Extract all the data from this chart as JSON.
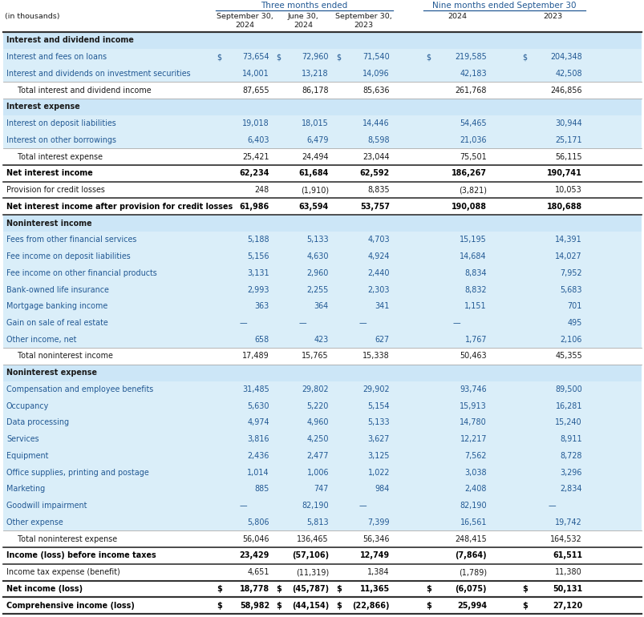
{
  "rows": [
    {
      "label": "Interest and dividend income",
      "type": "section_header",
      "values": [
        "",
        "",
        "",
        "",
        ""
      ],
      "dollar": [
        false,
        false,
        false,
        false,
        false
      ]
    },
    {
      "label": "Interest and fees on loans",
      "type": "data_blue",
      "values": [
        "73,654",
        "72,960",
        "71,540",
        "219,585",
        "204,348"
      ],
      "dollar": [
        true,
        true,
        true,
        true,
        true
      ]
    },
    {
      "label": "Interest and dividends on investment securities",
      "type": "data_blue",
      "values": [
        "14,001",
        "13,218",
        "14,096",
        "42,183",
        "42,508"
      ],
      "dollar": [
        false,
        false,
        false,
        false,
        false
      ]
    },
    {
      "label": "Total interest and dividend income",
      "type": "subtotal",
      "values": [
        "87,655",
        "86,178",
        "85,636",
        "261,768",
        "246,856"
      ],
      "dollar": [
        false,
        false,
        false,
        false,
        false
      ]
    },
    {
      "label": "Interest expense",
      "type": "section_header",
      "values": [
        "",
        "",
        "",
        "",
        ""
      ],
      "dollar": [
        false,
        false,
        false,
        false,
        false
      ]
    },
    {
      "label": "Interest on deposit liabilities",
      "type": "data_blue",
      "values": [
        "19,018",
        "18,015",
        "14,446",
        "54,465",
        "30,944"
      ],
      "dollar": [
        false,
        false,
        false,
        false,
        false
      ]
    },
    {
      "label": "Interest on other borrowings",
      "type": "data_blue",
      "values": [
        "6,403",
        "6,479",
        "8,598",
        "21,036",
        "25,171"
      ],
      "dollar": [
        false,
        false,
        false,
        false,
        false
      ]
    },
    {
      "label": "Total interest expense",
      "type": "subtotal",
      "values": [
        "25,421",
        "24,494",
        "23,044",
        "75,501",
        "56,115"
      ],
      "dollar": [
        false,
        false,
        false,
        false,
        false
      ]
    },
    {
      "label": "Net interest income",
      "type": "bold_total",
      "values": [
        "62,234",
        "61,684",
        "62,592",
        "186,267",
        "190,741"
      ],
      "dollar": [
        false,
        false,
        false,
        false,
        false
      ]
    },
    {
      "label": "Provision for credit losses",
      "type": "data_white",
      "values": [
        "248",
        "(1,910)",
        "8,835",
        "(3,821)",
        "10,053"
      ],
      "dollar": [
        false,
        false,
        false,
        false,
        false
      ]
    },
    {
      "label": "Net interest income after provision for credit losses",
      "type": "bold_total",
      "values": [
        "61,986",
        "63,594",
        "53,757",
        "190,088",
        "180,688"
      ],
      "dollar": [
        false,
        false,
        false,
        false,
        false
      ]
    },
    {
      "label": "Noninterest income",
      "type": "section_header",
      "values": [
        "",
        "",
        "",
        "",
        ""
      ],
      "dollar": [
        false,
        false,
        false,
        false,
        false
      ]
    },
    {
      "label": "Fees from other financial services",
      "type": "data_blue",
      "values": [
        "5,188",
        "5,133",
        "4,703",
        "15,195",
        "14,391"
      ],
      "dollar": [
        false,
        false,
        false,
        false,
        false
      ]
    },
    {
      "label": "Fee income on deposit liabilities",
      "type": "data_blue",
      "values": [
        "5,156",
        "4,630",
        "4,924",
        "14,684",
        "14,027"
      ],
      "dollar": [
        false,
        false,
        false,
        false,
        false
      ]
    },
    {
      "label": "Fee income on other financial products",
      "type": "data_blue",
      "values": [
        "3,131",
        "2,960",
        "2,440",
        "8,834",
        "7,952"
      ],
      "dollar": [
        false,
        false,
        false,
        false,
        false
      ]
    },
    {
      "label": "Bank-owned life insurance",
      "type": "data_blue",
      "values": [
        "2,993",
        "2,255",
        "2,303",
        "8,832",
        "5,683"
      ],
      "dollar": [
        false,
        false,
        false,
        false,
        false
      ]
    },
    {
      "label": "Mortgage banking income",
      "type": "data_blue",
      "values": [
        "363",
        "364",
        "341",
        "1,151",
        "701"
      ],
      "dollar": [
        false,
        false,
        false,
        false,
        false
      ]
    },
    {
      "label": "Gain on sale of real estate",
      "type": "data_blue",
      "values": [
        "—",
        "—",
        "—",
        "—",
        "495"
      ],
      "dollar": [
        false,
        false,
        false,
        false,
        false
      ]
    },
    {
      "label": "Other income, net",
      "type": "data_blue",
      "values": [
        "658",
        "423",
        "627",
        "1,767",
        "2,106"
      ],
      "dollar": [
        false,
        false,
        false,
        false,
        false
      ]
    },
    {
      "label": "Total noninterest income",
      "type": "subtotal",
      "values": [
        "17,489",
        "15,765",
        "15,338",
        "50,463",
        "45,355"
      ],
      "dollar": [
        false,
        false,
        false,
        false,
        false
      ]
    },
    {
      "label": "Noninterest expense",
      "type": "section_header",
      "values": [
        "",
        "",
        "",
        "",
        ""
      ],
      "dollar": [
        false,
        false,
        false,
        false,
        false
      ]
    },
    {
      "label": "Compensation and employee benefits",
      "type": "data_blue",
      "values": [
        "31,485",
        "29,802",
        "29,902",
        "93,746",
        "89,500"
      ],
      "dollar": [
        false,
        false,
        false,
        false,
        false
      ]
    },
    {
      "label": "Occupancy",
      "type": "data_blue",
      "values": [
        "5,630",
        "5,220",
        "5,154",
        "15,913",
        "16,281"
      ],
      "dollar": [
        false,
        false,
        false,
        false,
        false
      ]
    },
    {
      "label": "Data processing",
      "type": "data_blue",
      "values": [
        "4,974",
        "4,960",
        "5,133",
        "14,780",
        "15,240"
      ],
      "dollar": [
        false,
        false,
        false,
        false,
        false
      ]
    },
    {
      "label": "Services",
      "type": "data_blue",
      "values": [
        "3,816",
        "4,250",
        "3,627",
        "12,217",
        "8,911"
      ],
      "dollar": [
        false,
        false,
        false,
        false,
        false
      ]
    },
    {
      "label": "Equipment",
      "type": "data_blue",
      "values": [
        "2,436",
        "2,477",
        "3,125",
        "7,562",
        "8,728"
      ],
      "dollar": [
        false,
        false,
        false,
        false,
        false
      ]
    },
    {
      "label": "Office supplies, printing and postage",
      "type": "data_blue",
      "values": [
        "1,014",
        "1,006",
        "1,022",
        "3,038",
        "3,296"
      ],
      "dollar": [
        false,
        false,
        false,
        false,
        false
      ]
    },
    {
      "label": "Marketing",
      "type": "data_blue",
      "values": [
        "885",
        "747",
        "984",
        "2,408",
        "2,834"
      ],
      "dollar": [
        false,
        false,
        false,
        false,
        false
      ]
    },
    {
      "label": "Goodwill impairment",
      "type": "data_blue",
      "values": [
        "—",
        "82,190",
        "—",
        "82,190",
        "—"
      ],
      "dollar": [
        false,
        false,
        false,
        false,
        false
      ]
    },
    {
      "label": "Other expense",
      "type": "data_blue",
      "values": [
        "5,806",
        "5,813",
        "7,399",
        "16,561",
        "19,742"
      ],
      "dollar": [
        false,
        false,
        false,
        false,
        false
      ]
    },
    {
      "label": "Total noninterest expense",
      "type": "subtotal",
      "values": [
        "56,046",
        "136,465",
        "56,346",
        "248,415",
        "164,532"
      ],
      "dollar": [
        false,
        false,
        false,
        false,
        false
      ]
    },
    {
      "label": "Income (loss) before income taxes",
      "type": "bold_total",
      "values": [
        "23,429",
        "(57,106)",
        "12,749",
        "(7,864)",
        "61,511"
      ],
      "dollar": [
        false,
        false,
        false,
        false,
        false
      ]
    },
    {
      "label": "Income tax expense (benefit)",
      "type": "data_white",
      "values": [
        "4,651",
        "(11,319)",
        "1,384",
        "(1,789)",
        "11,380"
      ],
      "dollar": [
        false,
        false,
        false,
        false,
        false
      ]
    },
    {
      "label": "Net income (loss)",
      "type": "bold_dollar",
      "values": [
        "18,778",
        "(45,787)",
        "11,365",
        "(6,075)",
        "50,131"
      ],
      "dollar": [
        true,
        true,
        true,
        true,
        true
      ]
    },
    {
      "label": "Comprehensive income (loss)",
      "type": "bold_dollar_last",
      "values": [
        "58,982",
        "(44,154)",
        "(22,866)",
        "25,994",
        "27,120"
      ],
      "dollar": [
        true,
        true,
        true,
        true,
        true
      ]
    }
  ],
  "col_labels": [
    "September 30,\n2024",
    "June 30,\n2024",
    "September 30,\n2023",
    "2024",
    "2023"
  ],
  "group1_label": "Three months ended",
  "group2_label": "Nine months ended September 30",
  "in_thousands": "(in thousands)",
  "colors": {
    "section_bg": "#cce6f7",
    "blue_bg": "#daeef9",
    "white_bg": "#ffffff",
    "text_blue": "#215893",
    "text_dark": "#1a1a1a",
    "text_black": "#000000",
    "header_blue": "#215893",
    "line_dark": "#333333",
    "line_blue": "#215893"
  },
  "figw": 8.04,
  "figh": 7.7,
  "dpi": 100
}
